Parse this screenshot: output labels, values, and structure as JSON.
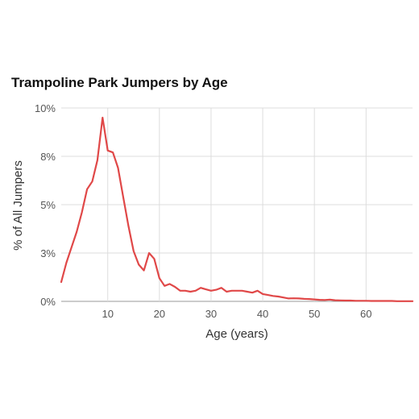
{
  "chart_data": {
    "type": "line",
    "title": "Trampoline Park Jumpers by Age",
    "xlabel": "Age (years)",
    "ylabel": "% of All Jumpers",
    "xlim": [
      1,
      69
    ],
    "ylim": [
      0,
      10
    ],
    "x_ticks": [
      10,
      20,
      30,
      40,
      50,
      60
    ],
    "x_tick_labels": [
      "10",
      "20",
      "30",
      "40",
      "50",
      "60"
    ],
    "y_ticks": [
      0,
      2.5,
      5,
      7.5,
      10
    ],
    "y_tick_labels": [
      "0%",
      "3%",
      "5%",
      "8%",
      "10%"
    ],
    "grid": true,
    "colors": {
      "line": "#e04848"
    },
    "series": [
      {
        "x": [
          1,
          2,
          3,
          4,
          5,
          6,
          7,
          8,
          9,
          10,
          11,
          12,
          13,
          14,
          15,
          16,
          17,
          18,
          19,
          20,
          21,
          22,
          23,
          24,
          25,
          26,
          27,
          28,
          29,
          30,
          31,
          32,
          33,
          34,
          35,
          36,
          37,
          38,
          39,
          40,
          41,
          42,
          43,
          44,
          45,
          46,
          47,
          48,
          49,
          50,
          51,
          52,
          53,
          54,
          55,
          56,
          57,
          58,
          59,
          60,
          61,
          62,
          63,
          64,
          65,
          66,
          67,
          68,
          69
        ],
        "y": [
          1.0,
          2.0,
          2.8,
          3.6,
          4.6,
          5.8,
          6.2,
          7.3,
          9.5,
          7.8,
          7.7,
          6.9,
          5.4,
          3.9,
          2.6,
          1.9,
          1.6,
          2.5,
          2.2,
          1.2,
          0.8,
          0.9,
          0.75,
          0.55,
          0.55,
          0.5,
          0.55,
          0.7,
          0.62,
          0.55,
          0.6,
          0.7,
          0.5,
          0.55,
          0.55,
          0.55,
          0.5,
          0.45,
          0.55,
          0.38,
          0.33,
          0.28,
          0.25,
          0.2,
          0.15,
          0.16,
          0.15,
          0.13,
          0.12,
          0.1,
          0.08,
          0.07,
          0.09,
          0.06,
          0.05,
          0.04,
          0.04,
          0.03,
          0.03,
          0.03,
          0.02,
          0.02,
          0.02,
          0.02,
          0.02,
          0.01,
          0.01,
          0.01,
          0.01
        ]
      }
    ]
  }
}
